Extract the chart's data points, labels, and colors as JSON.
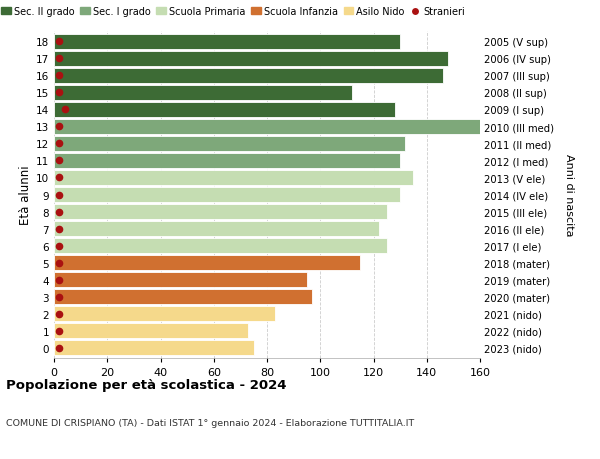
{
  "ages": [
    18,
    17,
    16,
    15,
    14,
    13,
    12,
    11,
    10,
    9,
    8,
    7,
    6,
    5,
    4,
    3,
    2,
    1,
    0
  ],
  "values": [
    130,
    148,
    146,
    112,
    128,
    160,
    132,
    130,
    135,
    130,
    125,
    122,
    125,
    115,
    95,
    97,
    83,
    73,
    75
  ],
  "stranieri": [
    2,
    2,
    2,
    2,
    4,
    2,
    2,
    2,
    2,
    2,
    2,
    2,
    2,
    2,
    2,
    2,
    2,
    2,
    2
  ],
  "right_labels": [
    "2005 (V sup)",
    "2006 (IV sup)",
    "2007 (III sup)",
    "2008 (II sup)",
    "2009 (I sup)",
    "2010 (III med)",
    "2011 (II med)",
    "2012 (I med)",
    "2013 (V ele)",
    "2014 (IV ele)",
    "2015 (III ele)",
    "2016 (II ele)",
    "2017 (I ele)",
    "2018 (mater)",
    "2019 (mater)",
    "2020 (mater)",
    "2021 (nido)",
    "2022 (nido)",
    "2023 (nido)"
  ],
  "colors": {
    "sec2": "#3d6b35",
    "sec1": "#7ea87a",
    "primaria": "#c5ddb2",
    "infanzia": "#d07030",
    "nido": "#f5d98b",
    "stranieri": "#aa1111"
  },
  "bar_colors": [
    "#3d6b35",
    "#3d6b35",
    "#3d6b35",
    "#3d6b35",
    "#3d6b35",
    "#7ea87a",
    "#7ea87a",
    "#7ea87a",
    "#c5ddb2",
    "#c5ddb2",
    "#c5ddb2",
    "#c5ddb2",
    "#c5ddb2",
    "#d07030",
    "#d07030",
    "#d07030",
    "#f5d98b",
    "#f5d98b",
    "#f5d98b"
  ],
  "legend_labels": [
    "Sec. II grado",
    "Sec. I grado",
    "Scuola Primaria",
    "Scuola Infanzia",
    "Asilo Nido",
    "Stranieri"
  ],
  "title": "Popolazione per età scolastica - 2024",
  "subtitle": "COMUNE DI CRISPIANO (TA) - Dati ISTAT 1° gennaio 2024 - Elaborazione TUTTITALIA.IT",
  "ylabel": "Età alunni",
  "right_ylabel": "Anni di nascita",
  "xlim": [
    0,
    160
  ],
  "xticks": [
    0,
    20,
    40,
    60,
    80,
    100,
    120,
    140,
    160
  ],
  "grid_color": "#cccccc"
}
